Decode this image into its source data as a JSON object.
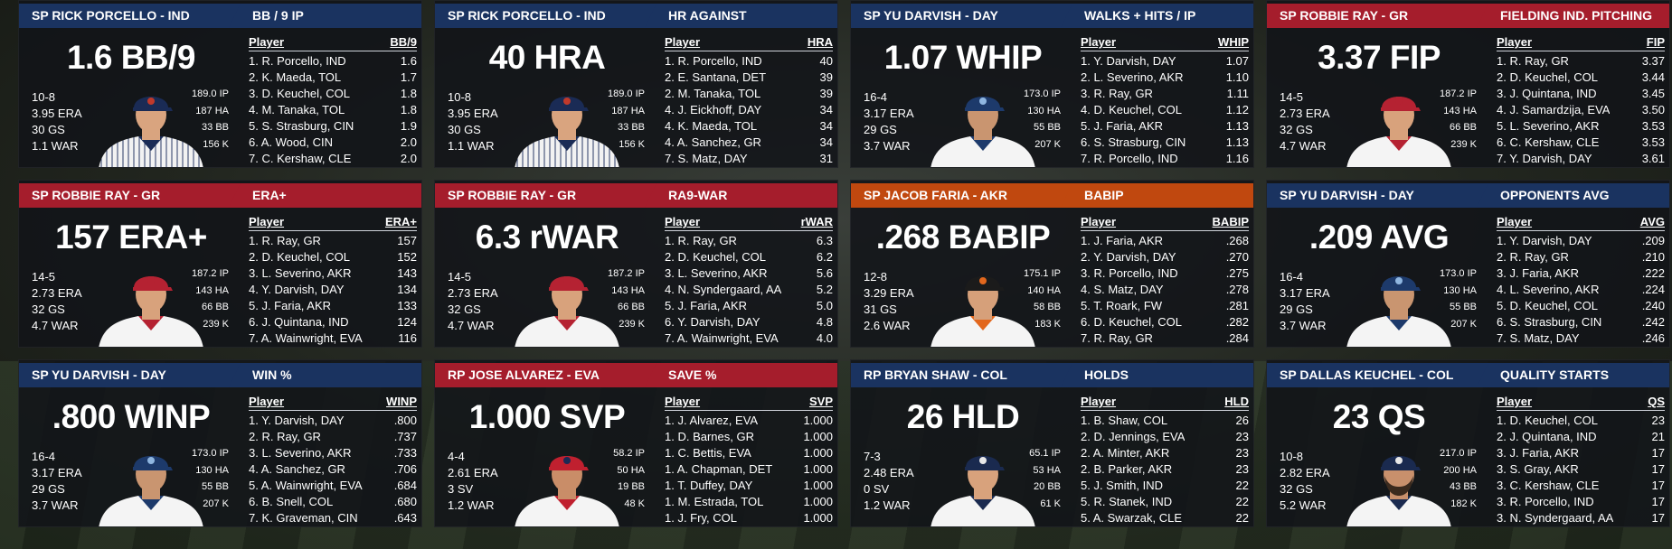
{
  "colors": {
    "navy": "#1a3360",
    "red": "#a51d2c",
    "orange": "#c0480f"
  },
  "panels": [
    {
      "label": "SP RICK PORCELLO - IND",
      "color": "navy",
      "stat": "1.6 BB/9",
      "title": "BB / 9 IP",
      "left": [
        "10-8",
        "3.95 ERA",
        "30 GS",
        "1.1 WAR"
      ],
      "right": [
        "189.0 IP",
        "187 HA",
        "33 BB",
        "156 K"
      ],
      "avatar": {
        "cap": "#1a2b55",
        "logo": "#c0392b",
        "jersey": "white-pinstripe",
        "collar": "#1a2b55",
        "skin": "#d9a47f"
      },
      "col": "BB/9",
      "rows": [
        [
          "1. R. Porcello, IND",
          "1.6"
        ],
        [
          "2. K. Maeda, TOL",
          "1.7"
        ],
        [
          "3. D. Keuchel, COL",
          "1.8"
        ],
        [
          "4. M. Tanaka, TOL",
          "1.8"
        ],
        [
          "5. S. Strasburg, CIN",
          "1.9"
        ],
        [
          "6. A. Wood, CIN",
          "2.0"
        ],
        [
          "7. C. Kershaw, CLE",
          "2.0"
        ]
      ]
    },
    {
      "label": "SP RICK PORCELLO - IND",
      "color": "navy",
      "stat": "40 HRA",
      "title": "HR AGAINST",
      "left": [
        "10-8",
        "3.95 ERA",
        "30 GS",
        "1.1 WAR"
      ],
      "right": [
        "189.0 IP",
        "187 HA",
        "33 BB",
        "156 K"
      ],
      "avatar": {
        "cap": "#1a2b55",
        "logo": "#c0392b",
        "jersey": "white-pinstripe",
        "collar": "#1a2b55",
        "skin": "#d9a47f"
      },
      "col": "HRA",
      "rows": [
        [
          "1. R. Porcello, IND",
          "40"
        ],
        [
          "2. E. Santana, DET",
          "39"
        ],
        [
          "2. M. Tanaka, TOL",
          "39"
        ],
        [
          "4. J. Eickhoff, DAY",
          "34"
        ],
        [
          "4. K. Maeda, TOL",
          "34"
        ],
        [
          "4. A. Sanchez, GR",
          "34"
        ],
        [
          "7. S. Matz, DAY",
          "31"
        ]
      ]
    },
    {
      "label": "SP YU DARVISH - DAY",
      "color": "navy",
      "stat": "1.07 WHIP",
      "title": "WALKS + HITS / IP",
      "left": [
        "16-4",
        "3.17 ERA",
        "29 GS",
        "3.7 WAR"
      ],
      "right": [
        "173.0 IP",
        "130 HA",
        "55 BB",
        "207 K"
      ],
      "avatar": {
        "cap": "#1d3a6b",
        "logo": "#8fb6e0",
        "jersey": "white",
        "collar": "#1d3a6b",
        "skin": "#c99570"
      },
      "col": "WHIP",
      "rows": [
        [
          "1. Y. Darvish, DAY",
          "1.07"
        ],
        [
          "2. L. Severino, AKR",
          "1.10"
        ],
        [
          "3. R. Ray, GR",
          "1.11"
        ],
        [
          "4. D. Keuchel, COL",
          "1.12"
        ],
        [
          "5. J. Faria, AKR",
          "1.13"
        ],
        [
          "6. S. Strasburg, CIN",
          "1.13"
        ],
        [
          "7. R. Porcello, IND",
          "1.16"
        ]
      ]
    },
    {
      "label": "SP ROBBIE RAY - GR",
      "color": "red",
      "stat": "3.37 FIP",
      "title": "FIELDING IND. PITCHING",
      "left": [
        "14-5",
        "2.73 ERA",
        "32 GS",
        "4.7 WAR"
      ],
      "right": [
        "187.2 IP",
        "143 HA",
        "66 BB",
        "239 K"
      ],
      "avatar": {
        "cap": "#b52232",
        "logo": "#b52232",
        "jersey": "white",
        "collar": "#b52232",
        "skin": "#d8a27c"
      },
      "col": "FIP",
      "rows": [
        [
          "1. R. Ray, GR",
          "3.37"
        ],
        [
          "2. D. Keuchel, COL",
          "3.44"
        ],
        [
          "3. J. Quintana, IND",
          "3.45"
        ],
        [
          "4. J. Samardzija, EVA",
          "3.50"
        ],
        [
          "5. L. Severino, AKR",
          "3.53"
        ],
        [
          "6. C. Kershaw, CLE",
          "3.53"
        ],
        [
          "7. Y. Darvish, DAY",
          "3.61"
        ]
      ]
    },
    {
      "label": "SP ROBBIE RAY - GR",
      "color": "red",
      "stat": "157 ERA+",
      "title": "ERA+",
      "left": [
        "14-5",
        "2.73 ERA",
        "32 GS",
        "4.7 WAR"
      ],
      "right": [
        "187.2 IP",
        "143 HA",
        "66 BB",
        "239 K"
      ],
      "avatar": {
        "cap": "#b52232",
        "logo": "#b52232",
        "jersey": "white",
        "collar": "#b52232",
        "skin": "#d8a27c"
      },
      "col": "ERA+",
      "rows": [
        [
          "1. R. Ray, GR",
          "157"
        ],
        [
          "2. D. Keuchel, COL",
          "152"
        ],
        [
          "3. L. Severino, AKR",
          "143"
        ],
        [
          "4. Y. Darvish, DAY",
          "134"
        ],
        [
          "5. J. Faria, AKR",
          "133"
        ],
        [
          "6. J. Quintana, IND",
          "124"
        ],
        [
          "7. A. Wainwright, EVA",
          "116"
        ]
      ]
    },
    {
      "label": "SP ROBBIE RAY - GR",
      "color": "red",
      "stat": "6.3 rWAR",
      "title": "RA9-WAR",
      "left": [
        "14-5",
        "2.73 ERA",
        "32 GS",
        "4.7 WAR"
      ],
      "right": [
        "187.2 IP",
        "143 HA",
        "66 BB",
        "239 K"
      ],
      "avatar": {
        "cap": "#b52232",
        "logo": "#b52232",
        "jersey": "white",
        "collar": "#b52232",
        "skin": "#d8a27c"
      },
      "col": "rWAR",
      "rows": [
        [
          "1. R. Ray, GR",
          "6.3"
        ],
        [
          "2. D. Keuchel, COL",
          "6.2"
        ],
        [
          "3. L. Severino, AKR",
          "5.6"
        ],
        [
          "4. N. Syndergaard, AA",
          "5.2"
        ],
        [
          "5. J. Faria, AKR",
          "5.0"
        ],
        [
          "6. Y. Darvish, DAY",
          "4.8"
        ],
        [
          "7. A. Wainwright, EVA",
          "4.0"
        ]
      ]
    },
    {
      "label": "SP JACOB FARIA - AKR",
      "color": "orange",
      "stat": ".268 BABIP",
      "title": "BABIP",
      "left": [
        "12-8",
        "3.29 ERA",
        "31 GS",
        "2.6 WAR"
      ],
      "right": [
        "175.1 IP",
        "140 HA",
        "58 BB",
        "183 K"
      ],
      "avatar": {
        "cap": "#1b1b1b",
        "logo": "#e2671d",
        "jersey": "white",
        "collar": "#e2671d",
        "skin": "#d6a07a"
      },
      "col": "BABIP",
      "rows": [
        [
          "1. J. Faria, AKR",
          ".268"
        ],
        [
          "2. Y. Darvish, DAY",
          ".270"
        ],
        [
          "3. R. Porcello, IND",
          ".275"
        ],
        [
          "4. S. Matz, DAY",
          ".278"
        ],
        [
          "5. T. Roark, FW",
          ".281"
        ],
        [
          "6. D. Keuchel, COL",
          ".282"
        ],
        [
          "7. R. Ray, GR",
          ".284"
        ]
      ]
    },
    {
      "label": "SP YU DARVISH - DAY",
      "color": "navy",
      "stat": ".209 AVG",
      "title": "OPPONENTS AVG",
      "left": [
        "16-4",
        "3.17 ERA",
        "29 GS",
        "3.7 WAR"
      ],
      "right": [
        "173.0 IP",
        "130 HA",
        "55 BB",
        "207 K"
      ],
      "avatar": {
        "cap": "#1d3a6b",
        "logo": "#8fb6e0",
        "jersey": "white",
        "collar": "#1d3a6b",
        "skin": "#c99570"
      },
      "col": "AVG",
      "rows": [
        [
          "1. Y. Darvish, DAY",
          ".209"
        ],
        [
          "2. R. Ray, GR",
          ".210"
        ],
        [
          "3. J. Faria, AKR",
          ".222"
        ],
        [
          "4. L. Severino, AKR",
          ".224"
        ],
        [
          "5. D. Keuchel, COL",
          ".240"
        ],
        [
          "6. S. Strasburg, CIN",
          ".242"
        ],
        [
          "7. S. Matz, DAY",
          ".246"
        ]
      ]
    },
    {
      "label": "SP YU DARVISH - DAY",
      "color": "navy",
      "stat": ".800 WINP",
      "title": "WIN %",
      "left": [
        "16-4",
        "3.17 ERA",
        "29 GS",
        "3.7 WAR"
      ],
      "right": [
        "173.0 IP",
        "130 HA",
        "55 BB",
        "207 K"
      ],
      "avatar": {
        "cap": "#1d3a6b",
        "logo": "#8fb6e0",
        "jersey": "white",
        "collar": "#1d3a6b",
        "skin": "#c99570"
      },
      "col": "WINP",
      "rows": [
        [
          "1. Y. Darvish, DAY",
          ".800"
        ],
        [
          "2. R. Ray, GR",
          ".737"
        ],
        [
          "3. L. Severino, AKR",
          ".733"
        ],
        [
          "4. A. Sanchez, GR",
          ".706"
        ],
        [
          "5. A. Wainwright, EVA",
          ".684"
        ],
        [
          "6. B. Snell, COL",
          ".680"
        ],
        [
          "7. K. Graveman, CIN",
          ".643"
        ]
      ]
    },
    {
      "label": "RP JOSE ALVAREZ - EVA",
      "color": "red",
      "stat": "1.000 SVP",
      "title": "SAVE %",
      "left": [
        "4-4",
        "2.61 ERA",
        "3 SV",
        "1.2 WAR"
      ],
      "right": [
        "58.2 IP",
        "50 HA",
        "19 BB",
        "48 K"
      ],
      "avatar": {
        "cap": "#c0202f",
        "logo": "#1b2a55",
        "jersey": "white",
        "collar": "#c0202f",
        "skin": "#c98d68"
      },
      "col": "SVP",
      "rows": [
        [
          "1. J. Alvarez, EVA",
          "1.000"
        ],
        [
          "1. D. Barnes, GR",
          "1.000"
        ],
        [
          "1. C. Bettis, EVA",
          "1.000"
        ],
        [
          "1. A. Chapman, DET",
          "1.000"
        ],
        [
          "1. T. Duffey, DAY",
          "1.000"
        ],
        [
          "1. M. Estrada, TOL",
          "1.000"
        ],
        [
          "1. J. Fry, COL",
          "1.000"
        ]
      ]
    },
    {
      "label": "RP BRYAN SHAW - COL",
      "color": "navy",
      "stat": "26 HLD",
      "title": "HOLDS",
      "left": [
        "7-3",
        "2.48 ERA",
        "0 SV",
        "1.2 WAR"
      ],
      "right": [
        "65.1 IP",
        "53 HA",
        "20 BB",
        "61 K"
      ],
      "avatar": {
        "cap": "#1a2a4f",
        "logo": "#e8e8e8",
        "jersey": "white",
        "collar": "#1a2a4f",
        "skin": "#d8a27c"
      },
      "col": "HLD",
      "rows": [
        [
          "1. B. Shaw, COL",
          "26"
        ],
        [
          "2. D. Jennings, EVA",
          "23"
        ],
        [
          "2. A. Minter, AKR",
          "23"
        ],
        [
          "2. B. Parker, AKR",
          "23"
        ],
        [
          "5. J. Smith, IND",
          "22"
        ],
        [
          "5. R. Stanek, IND",
          "22"
        ],
        [
          "5. A. Swarzak, CLE",
          "22"
        ]
      ]
    },
    {
      "label": "SP DALLAS KEUCHEL - COL",
      "color": "navy",
      "stat": "23 QS",
      "title": "QUALITY STARTS",
      "left": [
        "10-8",
        "2.82 ERA",
        "32 GS",
        "5.2 WAR"
      ],
      "right": [
        "217.0 IP",
        "200 HA",
        "43 BB",
        "182 K"
      ],
      "avatar": {
        "cap": "#1a2a4f",
        "logo": "#e8e8e8",
        "jersey": "white",
        "collar": "#1a2a4f",
        "skin": "#c8906c",
        "beard": true
      },
      "col": "QS",
      "rows": [
        [
          "1. D. Keuchel, COL",
          "23"
        ],
        [
          "2. J. Quintana, IND",
          "21"
        ],
        [
          "3. J. Faria, AKR",
          "17"
        ],
        [
          "3. S. Gray, AKR",
          "17"
        ],
        [
          "3. C. Kershaw, CLE",
          "17"
        ],
        [
          "3. R. Porcello, IND",
          "17"
        ],
        [
          "3. N. Syndergaard, AA",
          "17"
        ]
      ]
    }
  ]
}
